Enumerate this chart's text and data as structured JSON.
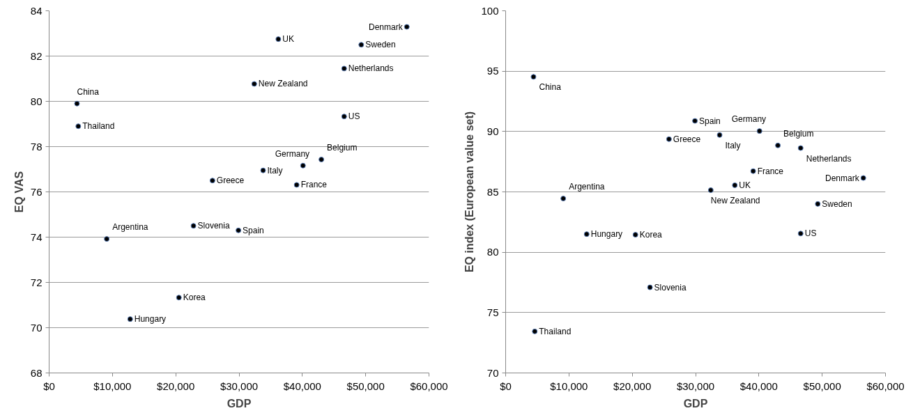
{
  "chart_data": [
    {
      "type": "scatter",
      "xlabel": "GDP",
      "ylabel": "EQ VAS",
      "marker": "circle",
      "grid": "y",
      "x": [
        4400,
        4600,
        9100,
        12800,
        20500,
        22800,
        25800,
        29900,
        32400,
        33800,
        36200,
        39100,
        40100,
        43000,
        46600,
        46600,
        49300,
        56500
      ],
      "series": [
        {
          "color": "#000000",
          "values": [
            79.9,
            78.9,
            73.92,
            70.38,
            71.33,
            74.5,
            76.5,
            74.3,
            80.77,
            76.95,
            82.75,
            76.31,
            77.16,
            77.43,
            81.45,
            79.33,
            82.5,
            83.29
          ]
        }
      ],
      "xlim": [
        0,
        60000
      ],
      "ylim": [
        68,
        84
      ],
      "xticks": [
        {
          "value": 0,
          "label": "$0"
        },
        {
          "value": 10000,
          "label": "$10,000"
        },
        {
          "value": 20000,
          "label": "$20,000"
        },
        {
          "value": 30000,
          "label": "$30,000"
        },
        {
          "value": 40000,
          "label": "$40,000"
        },
        {
          "value": 50000,
          "label": "$50,000"
        },
        {
          "value": 60000,
          "label": "$60,000"
        }
      ],
      "yticks": [
        68,
        70,
        72,
        74,
        76,
        78,
        80,
        82,
        84
      ],
      "annotations": [
        {
          "text": "China",
          "x": 4400,
          "y": 79.9
        },
        {
          "text": "Thailand",
          "x": 4600,
          "y": 78.9
        },
        {
          "text": "Argentina",
          "x": 9100,
          "y": 73.92
        },
        {
          "text": "Hungary",
          "x": 12800,
          "y": 70.38
        },
        {
          "text": "Korea",
          "x": 20500,
          "y": 71.33
        },
        {
          "text": "Slovenia",
          "x": 22800,
          "y": 74.5
        },
        {
          "text": "Greece",
          "x": 25800,
          "y": 76.5
        },
        {
          "text": "Spain",
          "x": 29900,
          "y": 74.3
        },
        {
          "text": "New Zealand",
          "x": 32400,
          "y": 80.77
        },
        {
          "text": "Italy",
          "x": 33800,
          "y": 76.95
        },
        {
          "text": "UK",
          "x": 36200,
          "y": 82.75
        },
        {
          "text": "France",
          "x": 39100,
          "y": 76.31
        },
        {
          "text": "Germany",
          "x": 40100,
          "y": 77.16
        },
        {
          "text": "Belgium",
          "x": 43000,
          "y": 77.43
        },
        {
          "text": "Netherlands",
          "x": 46600,
          "y": 81.45
        },
        {
          "text": "US",
          "x": 46600,
          "y": 79.33
        },
        {
          "text": "Sweden",
          "x": 49300,
          "y": 82.5
        },
        {
          "text": "Denmark",
          "x": 56500,
          "y": 83.29
        }
      ]
    },
    {
      "type": "scatter",
      "xlabel": "GDP",
      "ylabel": "EQ index (European value set)",
      "marker": "circle",
      "grid": "y",
      "x": [
        4400,
        4600,
        9100,
        12800,
        20500,
        22800,
        25800,
        29900,
        32400,
        33800,
        36200,
        39100,
        40100,
        43000,
        46600,
        46600,
        49300,
        56500
      ],
      "series": [
        {
          "color": "#000000",
          "values": [
            94.53,
            73.44,
            84.45,
            81.5,
            81.45,
            77.09,
            89.37,
            90.88,
            85.14,
            89.71,
            85.55,
            86.72,
            90.04,
            88.85,
            88.63,
            81.55,
            84.0,
            86.15
          ]
        }
      ],
      "xlim": [
        0,
        60000
      ],
      "ylim": [
        70,
        100
      ],
      "xticks": [
        {
          "value": 0,
          "label": "$0"
        },
        {
          "value": 10000,
          "label": "$10,000"
        },
        {
          "value": 20000,
          "label": "$20,000"
        },
        {
          "value": 30000,
          "label": "$30,000"
        },
        {
          "value": 40000,
          "label": "$40,000"
        },
        {
          "value": 50000,
          "label": "$50,000"
        },
        {
          "value": 60000,
          "label": "$60,000"
        }
      ],
      "yticks": [
        70,
        75,
        80,
        85,
        90,
        95,
        100
      ],
      "annotations": [
        {
          "text": "China",
          "x": 4400,
          "y": 94.53
        },
        {
          "text": "Thailand",
          "x": 4600,
          "y": 73.44
        },
        {
          "text": "Argentina",
          "x": 9100,
          "y": 84.45
        },
        {
          "text": "Hungary",
          "x": 12800,
          "y": 81.5
        },
        {
          "text": "Korea",
          "x": 20500,
          "y": 81.45
        },
        {
          "text": "Slovenia",
          "x": 22800,
          "y": 77.09
        },
        {
          "text": "Greece",
          "x": 25800,
          "y": 89.37
        },
        {
          "text": "Spain",
          "x": 29900,
          "y": 90.88
        },
        {
          "text": "New Zealand",
          "x": 32400,
          "y": 85.14
        },
        {
          "text": "Italy",
          "x": 33800,
          "y": 89.71
        },
        {
          "text": "UK",
          "x": 36200,
          "y": 85.55
        },
        {
          "text": "France",
          "x": 39100,
          "y": 86.72
        },
        {
          "text": "Germany",
          "x": 40100,
          "y": 90.04
        },
        {
          "text": "Belgium",
          "x": 43000,
          "y": 88.85
        },
        {
          "text": "Netherlands",
          "x": 46600,
          "y": 88.63
        },
        {
          "text": "US",
          "x": 46600,
          "y": 81.55
        },
        {
          "text": "Sweden",
          "x": 49300,
          "y": 84.0
        },
        {
          "text": "Denmark",
          "x": 56500,
          "y": 86.15
        }
      ]
    }
  ]
}
